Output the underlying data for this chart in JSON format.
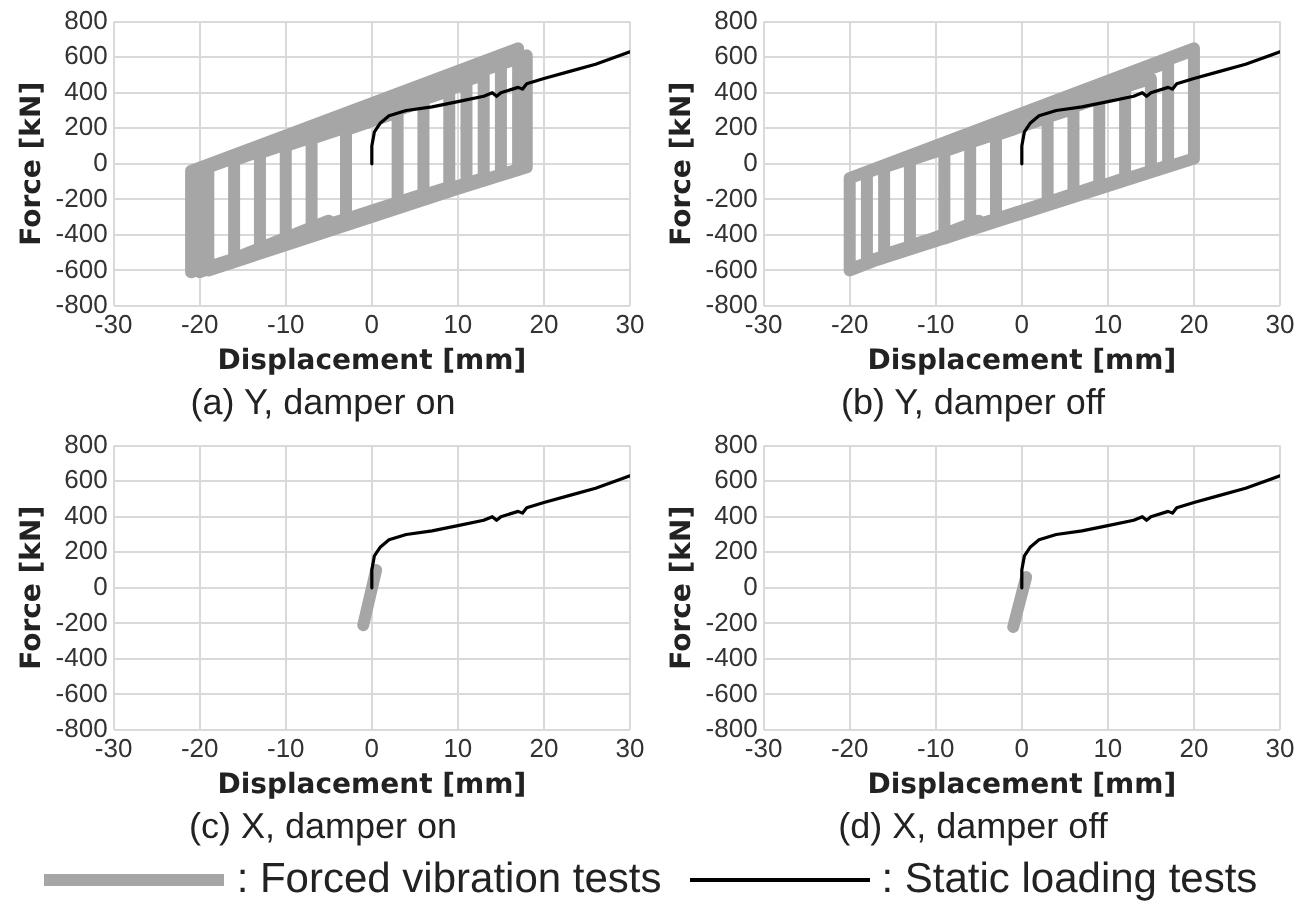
{
  "chart_data": [
    {
      "type": "line",
      "title": "(a) Y, damper on",
      "xlabel": "Displacement [mm]",
      "ylabel": "Force [kN]",
      "xlim": [
        -30,
        30
      ],
      "ylim": [
        -800,
        800
      ],
      "xticks": [
        -30,
        -20,
        -10,
        0,
        10,
        20,
        30
      ],
      "yticks": [
        -800,
        -600,
        -400,
        -200,
        0,
        200,
        400,
        600,
        800
      ],
      "grid": true,
      "marker": "none",
      "line_style": "solid",
      "series": [
        {
          "color": "#a6a6a6",
          "x": [
            3,
            3,
            -3,
            -3,
            6,
            6,
            -7,
            -7,
            9,
            9,
            -10,
            -10,
            11,
            11,
            -13,
            -13,
            13,
            13,
            -16,
            -16,
            15,
            15,
            -19,
            -19,
            17,
            17,
            -21,
            -21,
            18,
            18,
            -20,
            -20,
            -5
          ],
          "values": [
            -210,
            290,
            190,
            -310,
            -170,
            350,
            140,
            -370,
            -130,
            410,
            100,
            -420,
            -110,
            450,
            60,
            -480,
            -80,
            500,
            20,
            -540,
            -60,
            580,
            -20,
            -600,
            -30,
            650,
            -40,
            -610,
            -20,
            610,
            -30,
            -610,
            -320
          ]
        },
        {
          "color": "#000000",
          "x": [
            0,
            0,
            0.3,
            1,
            2,
            4,
            7,
            10,
            13,
            14,
            14.5,
            15,
            17,
            17.5,
            18,
            20,
            23,
            26,
            30
          ],
          "values": [
            0,
            100,
            180,
            230,
            270,
            300,
            320,
            350,
            380,
            400,
            380,
            400,
            430,
            420,
            450,
            480,
            520,
            560,
            630
          ]
        }
      ]
    },
    {
      "type": "line",
      "title": "(b) Y, damper off",
      "xlabel": "Displacement [mm]",
      "ylabel": "Force [kN]",
      "xlim": [
        -30,
        30
      ],
      "ylim": [
        -800,
        800
      ],
      "xticks": [
        -30,
        -20,
        -10,
        0,
        10,
        20,
        30
      ],
      "yticks": [
        -800,
        -600,
        -400,
        -200,
        0,
        200,
        400,
        600,
        800
      ],
      "grid": true,
      "marker": "none",
      "line_style": "solid",
      "series": [
        {
          "color": "#a6a6a6",
          "x": [
            3,
            3,
            -3,
            -3,
            6,
            6,
            -6,
            -6,
            9,
            9,
            -9,
            -9,
            12,
            12,
            -13,
            -13,
            15,
            15,
            -16,
            -16,
            17,
            17,
            -18,
            -18,
            20,
            20,
            -20,
            -20,
            20,
            20,
            -20,
            -20,
            -5
          ],
          "values": [
            -210,
            260,
            160,
            -310,
            -170,
            310,
            120,
            -360,
            -120,
            370,
            70,
            -420,
            -80,
            420,
            20,
            -460,
            -40,
            480,
            -20,
            -510,
            -10,
            570,
            -50,
            -550,
            30,
            640,
            -80,
            -590,
            30,
            650,
            -80,
            -600,
            -320
          ]
        },
        {
          "color": "#000000",
          "x": [
            0,
            0,
            0.3,
            1,
            2,
            4,
            7,
            10,
            13,
            14,
            14.5,
            15,
            17,
            17.5,
            18,
            20,
            23,
            26,
            30
          ],
          "values": [
            0,
            100,
            180,
            230,
            270,
            300,
            320,
            350,
            380,
            400,
            380,
            400,
            430,
            420,
            450,
            480,
            520,
            560,
            630
          ]
        }
      ]
    },
    {
      "type": "line",
      "title": "(c) X, damper on",
      "xlabel": "Displacement [mm]",
      "ylabel": "Force [kN]",
      "xlim": [
        -30,
        30
      ],
      "ylim": [
        -800,
        800
      ],
      "xticks": [
        -30,
        -20,
        -10,
        0,
        10,
        20,
        30
      ],
      "yticks": [
        -800,
        -600,
        -400,
        -200,
        0,
        200,
        400,
        600,
        800
      ],
      "grid": true,
      "marker": "none",
      "line_style": "solid",
      "series": [
        {
          "color": "#a6a6a6",
          "x": [
            -1,
            0.5
          ],
          "values": [
            -210,
            100
          ]
        },
        {
          "color": "#000000",
          "x": [
            0,
            0,
            0.3,
            1,
            2,
            4,
            7,
            10,
            13,
            14,
            14.5,
            15,
            17,
            17.5,
            18,
            20,
            23,
            26,
            30
          ],
          "values": [
            0,
            100,
            180,
            230,
            270,
            300,
            320,
            350,
            380,
            400,
            380,
            400,
            430,
            420,
            450,
            480,
            520,
            560,
            630
          ]
        }
      ]
    },
    {
      "type": "line",
      "title": "(d) X, damper off",
      "xlabel": "Displacement [mm]",
      "ylabel": "Force [kN]",
      "xlim": [
        -30,
        30
      ],
      "ylim": [
        -800,
        800
      ],
      "xticks": [
        -30,
        -20,
        -10,
        0,
        10,
        20,
        30
      ],
      "yticks": [
        -800,
        -600,
        -400,
        -200,
        0,
        200,
        400,
        600,
        800
      ],
      "grid": true,
      "marker": "none",
      "line_style": "solid",
      "legend": "bottom",
      "series": [
        {
          "name": ": Forced vibration tests",
          "color": "#a6a6a6",
          "x": [
            -1,
            0.5
          ],
          "values": [
            -220,
            60
          ]
        },
        {
          "name": ": Static loading tests",
          "color": "#000000",
          "x": [
            0,
            0,
            0.3,
            1,
            2,
            4,
            7,
            10,
            13,
            14,
            14.5,
            15,
            17,
            17.5,
            18,
            20,
            23,
            26,
            30
          ],
          "values": [
            0,
            100,
            180,
            230,
            270,
            300,
            320,
            350,
            380,
            400,
            380,
            400,
            430,
            420,
            450,
            480,
            520,
            560,
            630
          ]
        }
      ]
    }
  ]
}
